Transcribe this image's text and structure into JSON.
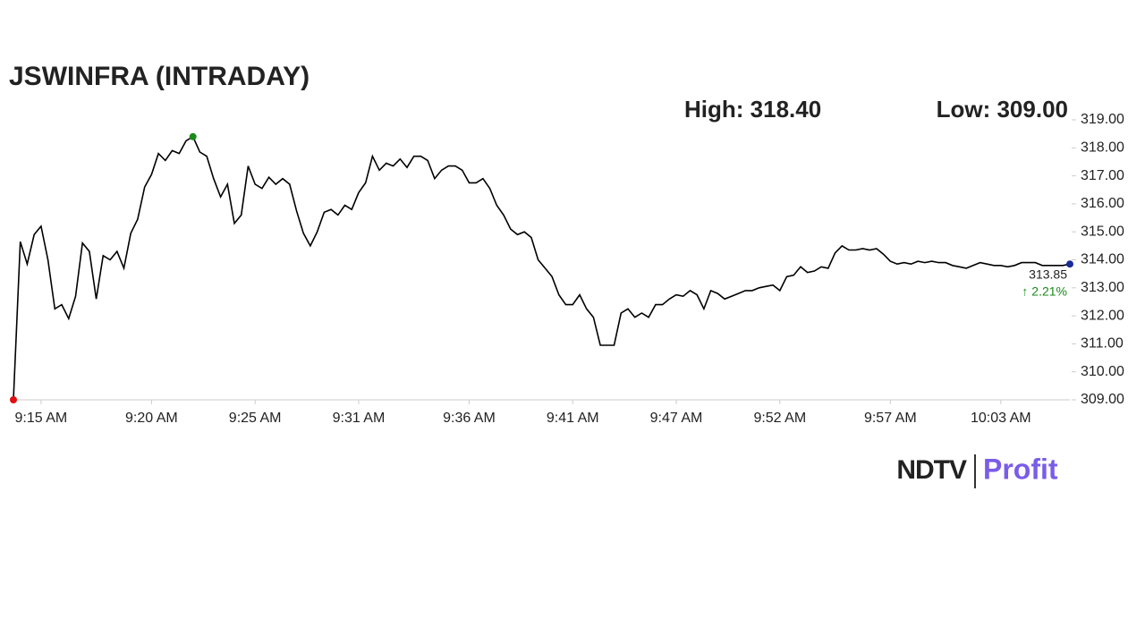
{
  "chart_data": {
    "type": "line",
    "title": "JSWINFRA (INTRADAY)",
    "annotations": {
      "high": "High: 318.40",
      "low": "Low: 309.00",
      "last": "313.85",
      "change": "↑ 2.21%"
    },
    "source": {
      "brand": "NDTV",
      "product": "Profit"
    },
    "series": [
      {
        "name": "JSWINFRA",
        "color": "#000000",
        "values": [
          309.0,
          314.65,
          313.85,
          314.9,
          315.2,
          314.0,
          312.25,
          312.4,
          311.9,
          312.7,
          314.6,
          314.3,
          312.6,
          314.15,
          314.0,
          314.3,
          313.7,
          314.95,
          315.45,
          316.6,
          317.05,
          317.8,
          317.55,
          317.9,
          317.8,
          318.25,
          318.4,
          317.85,
          317.7,
          316.9,
          316.25,
          316.7,
          315.3,
          315.6,
          317.35,
          316.7,
          316.55,
          316.95,
          316.7,
          316.9,
          316.7,
          315.75,
          314.95,
          314.5,
          315.0,
          315.7,
          315.8,
          315.6,
          315.95,
          315.8,
          316.4,
          316.75,
          317.7,
          317.2,
          317.45,
          317.35,
          317.6,
          317.3,
          317.7,
          317.7,
          317.55,
          316.9,
          317.2,
          317.35,
          317.35,
          317.2,
          316.75,
          316.75,
          316.9,
          316.55,
          315.95,
          315.6,
          315.1,
          314.9,
          315.0,
          314.8,
          314.0,
          313.7,
          313.4,
          312.75,
          312.4,
          312.4,
          312.75,
          312.25,
          311.95,
          310.95,
          310.95,
          310.95,
          312.1,
          312.25,
          311.95,
          312.1,
          311.95,
          312.4,
          312.4,
          312.6,
          312.75,
          312.7,
          312.9,
          312.75,
          312.25,
          312.9,
          312.8,
          312.6,
          312.7,
          312.8,
          312.9,
          312.9,
          313.0,
          313.05,
          313.1,
          312.9,
          313.4,
          313.45,
          313.75,
          313.55,
          313.6,
          313.75,
          313.7,
          314.25,
          314.5,
          314.35,
          314.35,
          314.4,
          314.35,
          314.4,
          314.2,
          313.95,
          313.85,
          313.9,
          313.85,
          313.95,
          313.9,
          313.95,
          313.9,
          313.9,
          313.8,
          313.75,
          313.7,
          313.8,
          313.9,
          313.85,
          313.8,
          313.8,
          313.75,
          313.8,
          313.9,
          313.9,
          313.9,
          313.8,
          313.8,
          313.8,
          313.8,
          313.85
        ]
      }
    ],
    "markers": {
      "low": {
        "index": 0,
        "color": "#e01010"
      },
      "high": {
        "index": 26,
        "color": "#1a8a1a"
      },
      "last": {
        "index": 153,
        "color": "#1a2a9a"
      }
    },
    "change_color": "#1a8a1a",
    "xlim": [
      0,
      153
    ],
    "xticks": [
      {
        "value": 4,
        "label": "9:15 AM"
      },
      {
        "value": 20,
        "label": "9:20 AM"
      },
      {
        "value": 35,
        "label": "9:25 AM"
      },
      {
        "value": 50,
        "label": "9:31 AM"
      },
      {
        "value": 66,
        "label": "9:36 AM"
      },
      {
        "value": 81,
        "label": "9:41 AM"
      },
      {
        "value": 96,
        "label": "9:47 AM"
      },
      {
        "value": 111,
        "label": "9:52 AM"
      },
      {
        "value": 127,
        "label": "9:57 AM"
      },
      {
        "value": 143,
        "label": "10:03 AM"
      }
    ],
    "ylim": [
      309,
      319
    ],
    "yticks": [
      {
        "value": 309,
        "label": "309.00"
      },
      {
        "value": 310,
        "label": "310.00"
      },
      {
        "value": 311,
        "label": "311.00"
      },
      {
        "value": 312,
        "label": "312.00"
      },
      {
        "value": 313,
        "label": "313.00"
      },
      {
        "value": 314,
        "label": "314.00"
      },
      {
        "value": 315,
        "label": "315.00"
      },
      {
        "value": 316,
        "label": "316.00"
      },
      {
        "value": 317,
        "label": "317.00"
      },
      {
        "value": 318,
        "label": "318.00"
      },
      {
        "value": 319,
        "label": "319.00"
      }
    ]
  }
}
